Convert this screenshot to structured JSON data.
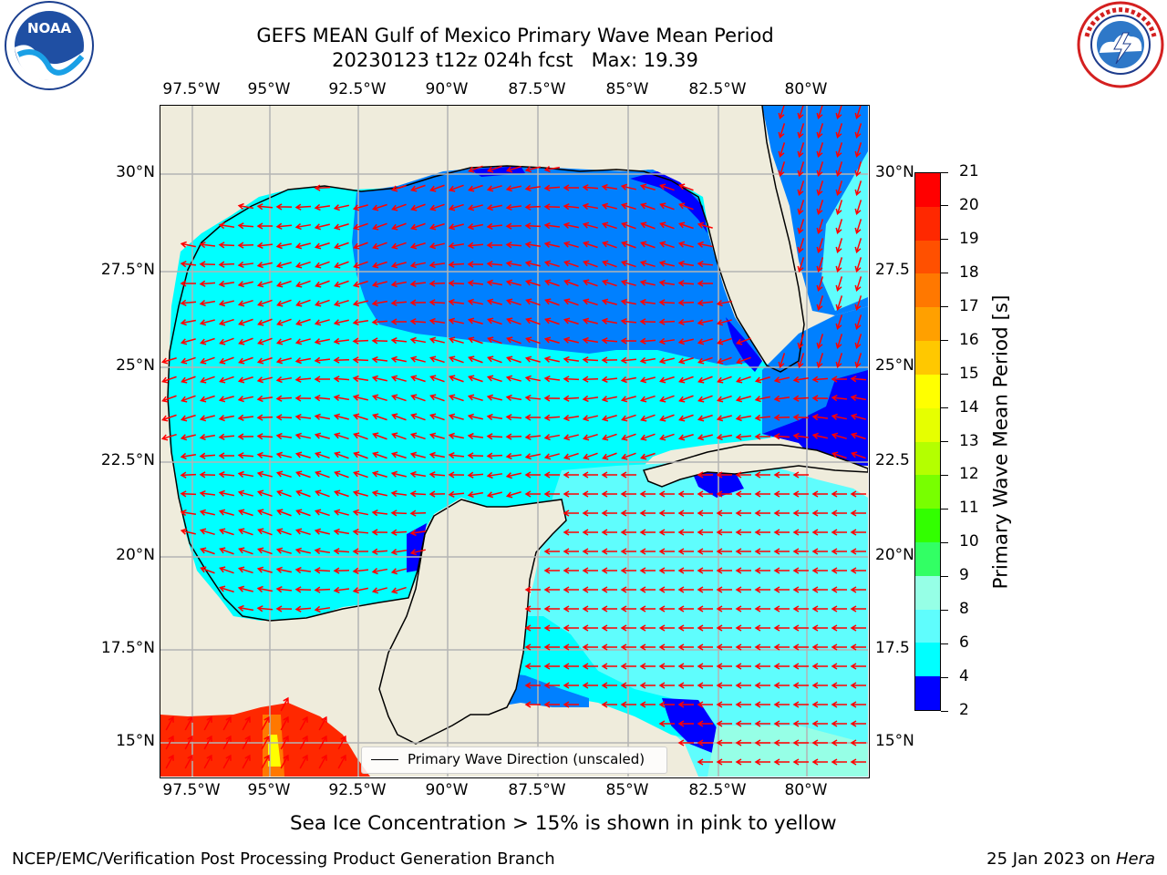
{
  "title": {
    "line1": "GEFS MEAN Gulf of Mexico Primary Wave Mean Period",
    "line2": "20230123 t12z 024h fcst   Max: 19.39"
  },
  "map": {
    "lon_ticks": [
      "97.5°W",
      "95°W",
      "92.5°W",
      "90°W",
      "87.5°W",
      "85°W",
      "82.5°W",
      "80°W"
    ],
    "lat_ticks_left": [
      "30°N",
      "27.5°N",
      "25°N",
      "22.5°N",
      "20°N",
      "17.5°N",
      "15°N"
    ],
    "lat_ticks_right": [
      "30°N",
      "27.5",
      "25°N",
      "22.5",
      "20°N",
      "17.5",
      "15°N"
    ],
    "legend_label": "Primary Wave Direction (unscaled)",
    "colors": {
      "land": "#efecdc",
      "arrow": "#ff0000",
      "grid": "#b4b4b4"
    }
  },
  "colorbar": {
    "label": "Primary Wave Mean Period [s]",
    "ticks": [
      "21",
      "20",
      "19",
      "18",
      "17",
      "16",
      "15",
      "14",
      "13",
      "12",
      "11",
      "10",
      "9",
      "8",
      "6",
      "4",
      "2"
    ],
    "colors": [
      "#ff0000",
      "#ff2800",
      "#ff5000",
      "#ff7800",
      "#ffa000",
      "#ffc800",
      "#ffff00",
      "#e6ff00",
      "#b4ff00",
      "#78ff00",
      "#32ff00",
      "#32ff64",
      "#96ffe6",
      "#5ffdfd",
      "#00ffff",
      "#0080ff",
      "#0000ff"
    ]
  },
  "caption": "Sea Ice Concentration > 15% is shown in pink to yellow",
  "footer": {
    "left": "NCEP/EMC/Verification Post Processing Product Generation Branch",
    "right_date": "25 Jan 2023 on",
    "right_machine": "Hera"
  },
  "logos": {
    "noaa": "NOAA",
    "noaa_ring": "NATIONAL OCEANIC AND ATMOSPHERIC ADMINISTRATION · U.S. DEPARTMENT OF COMMERCE",
    "nws_ring": "NATIONAL WEATHER SERVICE"
  }
}
